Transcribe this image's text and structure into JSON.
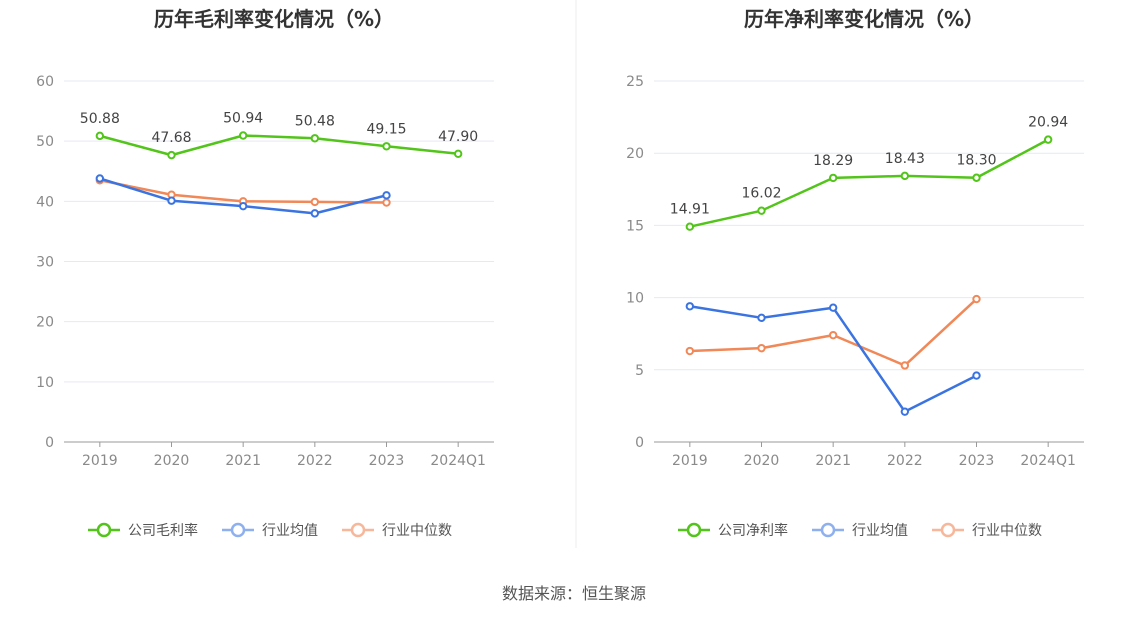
{
  "chart_data": [
    {
      "type": "line",
      "title": "历年毛利率变化情况（%）",
      "categories": [
        "2019",
        "2020",
        "2021",
        "2022",
        "2023",
        "2024Q1"
      ],
      "ylim": [
        0,
        60
      ],
      "yticks": [
        0,
        10,
        20,
        30,
        40,
        50,
        60
      ],
      "grid": true,
      "legend_position": "bottom",
      "series": [
        {
          "name": "公司毛利率",
          "color": "#52c41a",
          "labeled": true,
          "values": [
            50.88,
            47.68,
            50.94,
            50.48,
            49.15,
            47.9
          ]
        },
        {
          "name": "行业均值",
          "color": "#3b74e0",
          "labeled": false,
          "values": [
            43.8,
            40.1,
            39.2,
            38.0,
            41.0,
            null
          ]
        },
        {
          "name": "行业中位数",
          "color": "#f08858",
          "labeled": false,
          "values": [
            43.5,
            41.1,
            40.0,
            39.9,
            39.8,
            null
          ]
        }
      ]
    },
    {
      "type": "line",
      "title": "历年净利率变化情况（%）",
      "categories": [
        "2019",
        "2020",
        "2021",
        "2022",
        "2023",
        "2024Q1"
      ],
      "ylim": [
        0,
        25
      ],
      "yticks": [
        0,
        5,
        10,
        15,
        20,
        25
      ],
      "grid": true,
      "legend_position": "bottom",
      "series": [
        {
          "name": "公司净利率",
          "color": "#52c41a",
          "labeled": true,
          "values": [
            14.91,
            16.02,
            18.29,
            18.43,
            18.3,
            20.94
          ]
        },
        {
          "name": "行业均值",
          "color": "#3b74e0",
          "labeled": false,
          "values": [
            9.4,
            8.6,
            9.3,
            2.1,
            4.6,
            null
          ]
        },
        {
          "name": "行业中位数",
          "color": "#f08858",
          "labeled": false,
          "values": [
            6.3,
            6.5,
            7.4,
            5.3,
            9.9,
            null
          ]
        }
      ]
    }
  ],
  "footer": {
    "source": "数据来源：恒生聚源"
  },
  "legend_colors": {
    "行业均值": "#8fb0ee",
    "行业中位数": "#f7b79b"
  }
}
